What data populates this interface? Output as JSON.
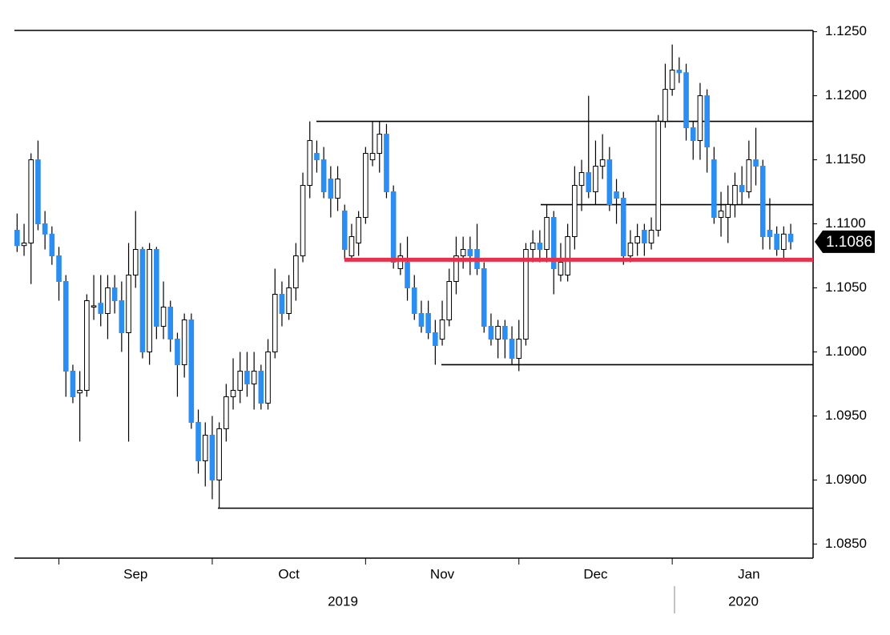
{
  "chart_data": {
    "type": "candlestick",
    "categories": [
      null,
      null,
      null,
      null,
      null,
      null,
      null,
      null,
      null,
      null,
      null,
      null,
      null,
      null,
      null,
      null,
      null,
      "Sep",
      null,
      null,
      null,
      null,
      null,
      null,
      null,
      null,
      null,
      null,
      null,
      null,
      null,
      null,
      null,
      null,
      null,
      null,
      null,
      null,
      null,
      "Oct",
      null,
      null,
      null,
      null,
      null,
      null,
      null,
      null,
      null,
      null,
      null,
      null,
      null,
      null,
      null,
      null,
      null,
      null,
      null,
      null,
      null,
      "Nov",
      null,
      null,
      null,
      null,
      null,
      null,
      null,
      null,
      null,
      null,
      null,
      null,
      null,
      null,
      null,
      null,
      null,
      null,
      null,
      null,
      null,
      "Dec",
      null,
      null,
      null,
      null,
      null,
      null,
      null,
      null,
      null,
      null,
      null,
      null,
      null,
      null,
      null,
      null,
      null,
      null,
      null,
      null,
      null,
      "Jan",
      null,
      null,
      null,
      null,
      null,
      null
    ],
    "years": [
      "2019",
      "2020"
    ],
    "open": [
      1.1095,
      1.1083,
      1.1085,
      1.115,
      1.11,
      1.1092,
      1.1075,
      1.1055,
      1.0985,
      1.0968,
      1.097,
      1.1035,
      1.1038,
      1.103,
      1.105,
      1.104,
      1.1015,
      1.106,
      1.108,
      1.1,
      1.108,
      1.102,
      1.1035,
      1.101,
      1.099,
      1.1025,
      1.0945,
      1.0915,
      1.0935,
      1.09,
      1.094,
      1.0965,
      1.097,
      1.0985,
      1.0975,
      1.0985,
      1.096,
      1.1,
      1.1045,
      1.103,
      1.105,
      1.1075,
      1.113,
      1.1155,
      1.115,
      1.1135,
      1.112,
      1.111,
      1.1075,
      1.1085,
      1.1105,
      1.115,
      1.1155,
      1.117,
      1.1125,
      1.1065,
      1.107,
      1.105,
      1.103,
      1.103,
      1.1015,
      1.101,
      1.1025,
      1.1055,
      1.1075,
      1.108,
      1.108,
      1.1065,
      1.102,
      1.101,
      1.102,
      1.101,
      1.0995,
      1.101,
      1.108,
      1.1085,
      1.108,
      1.1105,
      1.106,
      1.106,
      1.109,
      1.113,
      1.114,
      1.1125,
      1.1145,
      1.115,
      1.1125,
      1.112,
      1.1075,
      1.1085,
      1.1095,
      1.1085,
      1.1095,
      1.118,
      1.1205,
      1.122,
      1.1218,
      1.1175,
      1.1165,
      1.12,
      1.115,
      1.1105,
      1.1105,
      1.1115,
      1.113,
      1.1125,
      1.115,
      1.1145,
      1.1095,
      1.1092,
      1.108,
      1.1092
    ],
    "high": [
      1.1108,
      1.11,
      1.1155,
      1.1165,
      1.111,
      1.1098,
      1.1082,
      1.106,
      1.099,
      1.0985,
      1.1045,
      1.106,
      1.106,
      1.106,
      1.106,
      1.1055,
      1.1085,
      1.111,
      1.1082,
      1.1085,
      1.1082,
      1.1055,
      1.104,
      1.1015,
      1.103,
      1.103,
      1.0955,
      1.0945,
      1.095,
      1.0945,
      1.0975,
      1.0995,
      1.1,
      1.1,
      1.1,
      1.099,
      1.101,
      1.1065,
      1.1055,
      1.106,
      1.1085,
      1.114,
      1.118,
      1.1165,
      1.116,
      1.1145,
      1.1145,
      1.1115,
      1.11,
      1.111,
      1.116,
      1.118,
      1.118,
      1.1178,
      1.113,
      1.1085,
      1.109,
      1.106,
      1.104,
      1.104,
      1.1025,
      1.104,
      1.1065,
      1.109,
      1.109,
      1.109,
      1.11,
      1.107,
      1.103,
      1.1025,
      1.1025,
      1.102,
      1.1025,
      1.1085,
      1.1095,
      1.1095,
      1.1115,
      1.111,
      1.1085,
      1.11,
      1.1145,
      1.115,
      1.12,
      1.1165,
      1.117,
      1.116,
      1.1135,
      1.1125,
      1.1095,
      1.11,
      1.11,
      1.1105,
      1.1185,
      1.1225,
      1.124,
      1.123,
      1.1225,
      1.118,
      1.121,
      1.1205,
      1.116,
      1.1125,
      1.113,
      1.114,
      1.1145,
      1.1165,
      1.1175,
      1.115,
      1.112,
      1.1098,
      1.1098,
      1.11
    ],
    "low": [
      1.1078,
      1.1075,
      1.1053,
      1.1095,
      1.108,
      1.1068,
      1.104,
      1.0965,
      1.096,
      1.093,
      1.0965,
      1.1025,
      1.102,
      1.101,
      1.103,
      1.1,
      1.093,
      1.105,
      1.0995,
      1.099,
      1.101,
      1.101,
      1.1,
      1.0965,
      1.098,
      1.094,
      1.0905,
      1.0895,
      1.0885,
      1.0878,
      1.093,
      1.0955,
      1.096,
      1.0965,
      1.0955,
      1.0955,
      1.0955,
      1.0995,
      1.102,
      1.1025,
      1.104,
      1.107,
      1.112,
      1.114,
      1.112,
      1.1105,
      1.111,
      1.1072,
      1.1072,
      1.1075,
      1.11,
      1.1145,
      1.114,
      1.112,
      1.1065,
      1.106,
      1.104,
      1.1025,
      1.1015,
      1.101,
      1.099,
      1.1005,
      1.102,
      1.1045,
      1.1065,
      1.106,
      1.106,
      1.1015,
      1.1005,
      1.0995,
      1.0995,
      1.099,
      1.0985,
      1.1005,
      1.107,
      1.107,
      1.107,
      1.1045,
      1.1055,
      1.1055,
      1.108,
      1.111,
      1.112,
      1.1115,
      1.1135,
      1.111,
      1.11,
      1.1068,
      1.107,
      1.1075,
      1.1075,
      1.108,
      1.109,
      1.1175,
      1.12,
      1.121,
      1.1165,
      1.115,
      1.115,
      1.114,
      1.11,
      1.109,
      1.1085,
      1.1105,
      1.1115,
      1.112,
      1.113,
      1.108,
      1.108,
      1.1075,
      1.1072,
      1.108
    ],
    "close": [
      1.1083,
      1.1085,
      1.115,
      1.11,
      1.1092,
      1.1075,
      1.1055,
      1.0985,
      1.0965,
      1.097,
      1.104,
      1.1036,
      1.103,
      1.105,
      1.104,
      1.1015,
      1.106,
      1.108,
      1.1,
      1.108,
      1.102,
      1.1035,
      1.101,
      1.099,
      1.1025,
      1.0945,
      1.0915,
      1.0935,
      1.09,
      1.094,
      1.0965,
      1.097,
      1.0985,
      1.0975,
      1.0985,
      1.096,
      1.1,
      1.1045,
      1.103,
      1.105,
      1.1075,
      1.113,
      1.1165,
      1.115,
      1.1125,
      1.112,
      1.1135,
      1.108,
      1.109,
      1.1105,
      1.1155,
      1.1155,
      1.117,
      1.1125,
      1.107,
      1.1075,
      1.105,
      1.103,
      1.102,
      1.1015,
      1.1005,
      1.1025,
      1.1055,
      1.1075,
      1.108,
      1.1075,
      1.1065,
      1.102,
      1.101,
      1.102,
      1.101,
      1.0995,
      1.101,
      1.108,
      1.1085,
      1.108,
      1.1105,
      1.1065,
      1.107,
      1.109,
      1.113,
      1.114,
      1.1125,
      1.1145,
      1.115,
      1.1115,
      1.112,
      1.1075,
      1.1085,
      1.109,
      1.1085,
      1.1095,
      1.118,
      1.1205,
      1.122,
      1.1218,
      1.1175,
      1.1165,
      1.12,
      1.116,
      1.1105,
      1.111,
      1.1115,
      1.113,
      1.1125,
      1.115,
      1.1145,
      1.109,
      1.109,
      1.108,
      1.1092,
      1.1086
    ],
    "up_color": "#ffffff",
    "down_color": "#2b8ef0",
    "levels": [
      1.118,
      1.1115,
      1.099,
      1.0878
    ],
    "support": 1.1072,
    "support_color": "#e8304a",
    "ylim": [
      1.0839,
      1.1251
    ],
    "yticks": [
      {
        "value": 1.085,
        "label": "1.0850"
      },
      {
        "value": 1.09,
        "label": "1.0900"
      },
      {
        "value": 1.095,
        "label": "1.0950"
      },
      {
        "value": 1.1,
        "label": "1.1000"
      },
      {
        "value": 1.105,
        "label": "1.1050"
      },
      {
        "value": 1.11,
        "label": "1.1100"
      },
      {
        "value": 1.115,
        "label": "1.1150"
      },
      {
        "value": 1.12,
        "label": "1.1200"
      },
      {
        "value": 1.125,
        "label": "1.1250"
      }
    ]
  }
}
